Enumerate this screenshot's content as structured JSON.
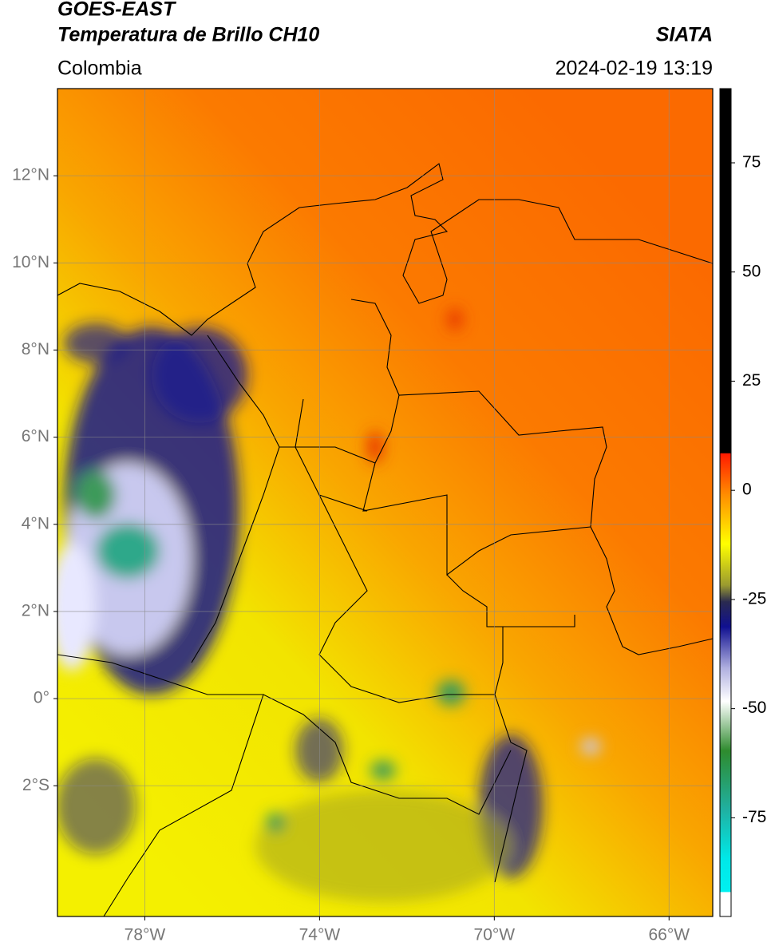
{
  "header": {
    "satellite": "GOES-EAST",
    "product": "Temperatura de Brillo CH10",
    "region": "Colombia",
    "source": "SIATA",
    "datetime": "2024-02-19 13:19"
  },
  "map": {
    "xlim": [
      -80,
      -65
    ],
    "ylim": [
      -5,
      14
    ],
    "xticks": [
      {
        "value": -78,
        "label": "78°W"
      },
      {
        "value": -74,
        "label": "74°W"
      },
      {
        "value": -70,
        "label": "70°W"
      },
      {
        "value": -66,
        "label": "66°W"
      }
    ],
    "yticks": [
      {
        "value": -2,
        "label": "2°S"
      },
      {
        "value": 0,
        "label": "0°"
      },
      {
        "value": 2,
        "label": "2°N"
      },
      {
        "value": 4,
        "label": "4°N"
      },
      {
        "value": 6,
        "label": "6°N"
      },
      {
        "value": 8,
        "label": "8°N"
      },
      {
        "value": 10,
        "label": "10°N"
      },
      {
        "value": 12,
        "label": "12°N"
      }
    ],
    "grid": true
  },
  "colorbar": {
    "lim": [
      -97.6,
      92
    ],
    "ticks": [
      -75,
      -50,
      -25,
      0,
      25,
      50,
      75
    ]
  }
}
